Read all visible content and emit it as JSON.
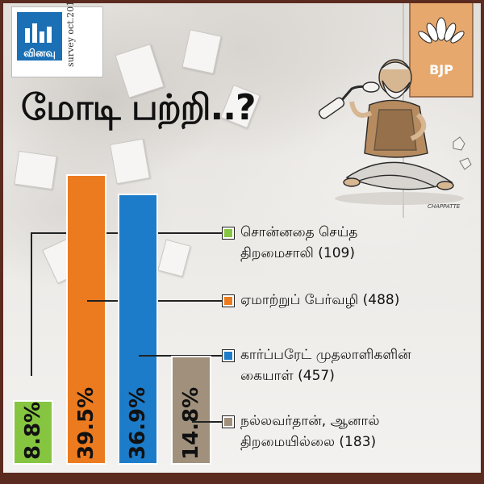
{
  "logo": {
    "word": "வினவு",
    "survey": "survey oct.2017"
  },
  "headline": "மோடி பற்றி..?",
  "cartoon": {
    "party_label": "BJP",
    "signature": "CHAPPATTE"
  },
  "colors": {
    "green": "#86c540",
    "orange": "#ec7a1f",
    "blue": "#1c7cc9",
    "taupe": "#a0907c",
    "frame": "#5c2b1f"
  },
  "chart_data": {
    "type": "bar",
    "title": "மோடி பற்றி..?",
    "categories": [
      "சொன்னதை செய்த திறமைசாலி",
      "ஏமாற்றுப் பேர்வழி",
      "கார்ப்பரேட் முதலாளிகளின் கையாள்",
      "நல்லவர்தான், ஆனால் திறமையில்லை"
    ],
    "values": [
      8.8,
      39.5,
      36.9,
      14.8
    ],
    "counts": [
      109,
      488,
      457,
      183
    ],
    "value_labels": [
      "8.8%",
      "39.5%",
      "36.9%",
      "14.8%"
    ],
    "legend": [
      {
        "line1": "சொன்னதை செய்த",
        "line2": "திறமைசாலி (109)",
        "color": "#86c540"
      },
      {
        "line1": "ஏமாற்றுப் பேர்வழி (488)",
        "line2": "",
        "color": "#ec7a1f"
      },
      {
        "line1": "கார்ப்பரேட் முதலாளிகளின்",
        "line2": "கையாள் (457)",
        "color": "#1c7cc9"
      },
      {
        "line1": "நல்லவர்தான், ஆனால்",
        "line2": "திறமையில்லை (183)",
        "color": "#a0907c"
      }
    ],
    "legend_placement": "right",
    "ylim": [
      0,
      40
    ],
    "grid": false
  }
}
